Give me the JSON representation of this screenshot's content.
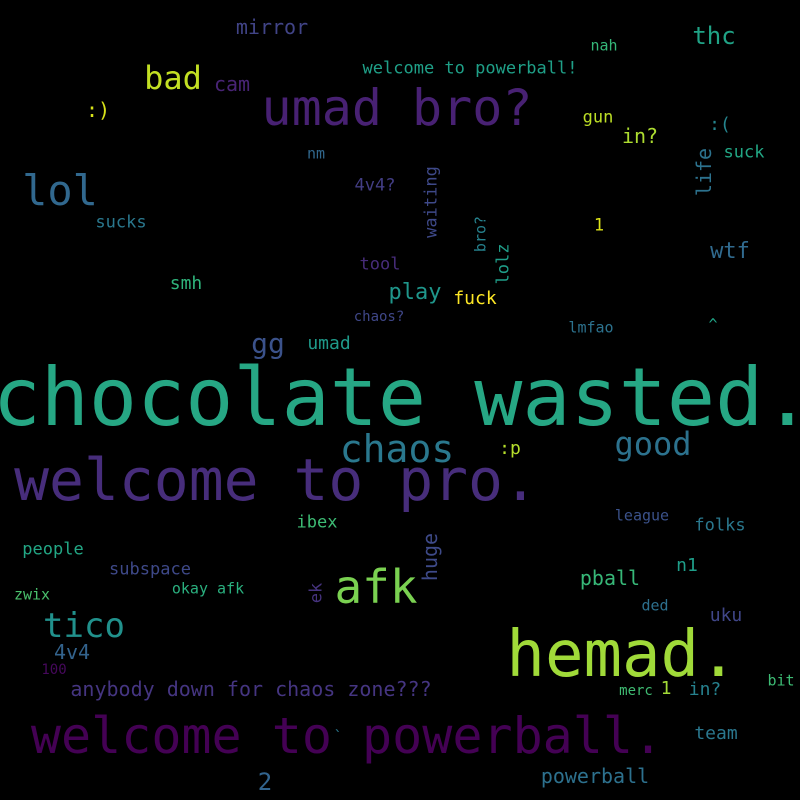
{
  "words": [
    {
      "text": "chocolate wasted.",
      "color": "#26a784"
    },
    {
      "text": "welcome to pro.",
      "color": "#472d7b"
    },
    {
      "text": "hemad.",
      "color": "#a0da39"
    },
    {
      "text": "welcome to powerball.",
      "color": "#440154"
    },
    {
      "text": "umad bro?",
      "color": "#482173"
    },
    {
      "text": "afk",
      "color": "#7ad151"
    },
    {
      "text": "chaos",
      "color": "#2a788e"
    },
    {
      "text": "lol",
      "color": "#31688e"
    },
    {
      "text": "tico",
      "color": "#21918c"
    },
    {
      "text": "good",
      "color": "#2c728e"
    },
    {
      "text": "bad",
      "color": "#c2df23"
    },
    {
      "text": "gg",
      "color": "#3b528b"
    },
    {
      "text": "thc",
      "color": "#20a386"
    },
    {
      "text": "mirror",
      "color": "#414487"
    },
    {
      "text": "cam",
      "color": "#482475"
    },
    {
      "text": ":)",
      "color": "#d8e219"
    },
    {
      "text": "welcome to powerball!",
      "color": "#1fa088"
    },
    {
      "text": "nah",
      "color": "#35b779"
    },
    {
      "text": "gun",
      "color": "#bddf26"
    },
    {
      "text": "in?",
      "color": "#addc30"
    },
    {
      "text": ":(",
      "color": "#25858e"
    },
    {
      "text": "suck",
      "color": "#22a785"
    },
    {
      "text": "life",
      "color": "#2c728e"
    },
    {
      "text": "nm",
      "color": "#31688e"
    },
    {
      "text": "4v4?",
      "color": "#433e85"
    },
    {
      "text": "waiting",
      "color": "#3e4989"
    },
    {
      "text": "bro?",
      "color": "#26828e"
    },
    {
      "text": "lolz",
      "color": "#1f9e89"
    },
    {
      "text": "sucks",
      "color": "#2a788e"
    },
    {
      "text": "1",
      "color": "#dde318"
    },
    {
      "text": "wtf",
      "color": "#306a8e"
    },
    {
      "text": "tool",
      "color": "#472c7a"
    },
    {
      "text": "smh",
      "color": "#2fb47c"
    },
    {
      "text": "play",
      "color": "#1f968b"
    },
    {
      "text": "fuck",
      "color": "#fde725"
    },
    {
      "text": "chaos?",
      "color": "#3f4788"
    },
    {
      "text": "lmfao",
      "color": "#2c728e"
    },
    {
      "text": "^",
      "color": "#20a486"
    },
    {
      "text": "umad",
      "color": "#1f9a8a"
    },
    {
      "text": ":p",
      "color": "#b5de2b"
    },
    {
      "text": "ibex",
      "color": "#3dbc74"
    },
    {
      "text": "league",
      "color": "#3b528b"
    },
    {
      "text": "folks",
      "color": "#2a788e"
    },
    {
      "text": "huge",
      "color": "#3e4a89"
    },
    {
      "text": "people",
      "color": "#22a785"
    },
    {
      "text": "subspace",
      "color": "#3e4989"
    },
    {
      "text": "zwix",
      "color": "#4ac16d"
    },
    {
      "text": "okay afk",
      "color": "#2ab07f"
    },
    {
      "text": "ek",
      "color": "#46337f"
    },
    {
      "text": "pball",
      "color": "#37b878"
    },
    {
      "text": "n1",
      "color": "#1f9e89"
    },
    {
      "text": "ded",
      "color": "#2d708e"
    },
    {
      "text": "uku",
      "color": "#404688"
    },
    {
      "text": "4v4",
      "color": "#33638d"
    },
    {
      "text": "100",
      "color": "#46085c"
    },
    {
      "text": "anybody down for chaos zone???",
      "color": "#453581"
    },
    {
      "text": "merc",
      "color": "#3fbc73"
    },
    {
      "text": "1",
      "color": "#a2da37"
    },
    {
      "text": "in?",
      "color": "#26818e"
    },
    {
      "text": "bit",
      "color": "#3dbc74"
    },
    {
      "text": "`",
      "color": "#2a788e"
    },
    {
      "text": "team",
      "color": "#2a778e"
    },
    {
      "text": "2",
      "color": "#32648e"
    },
    {
      "text": "powerball",
      "color": "#2d718e"
    }
  ]
}
